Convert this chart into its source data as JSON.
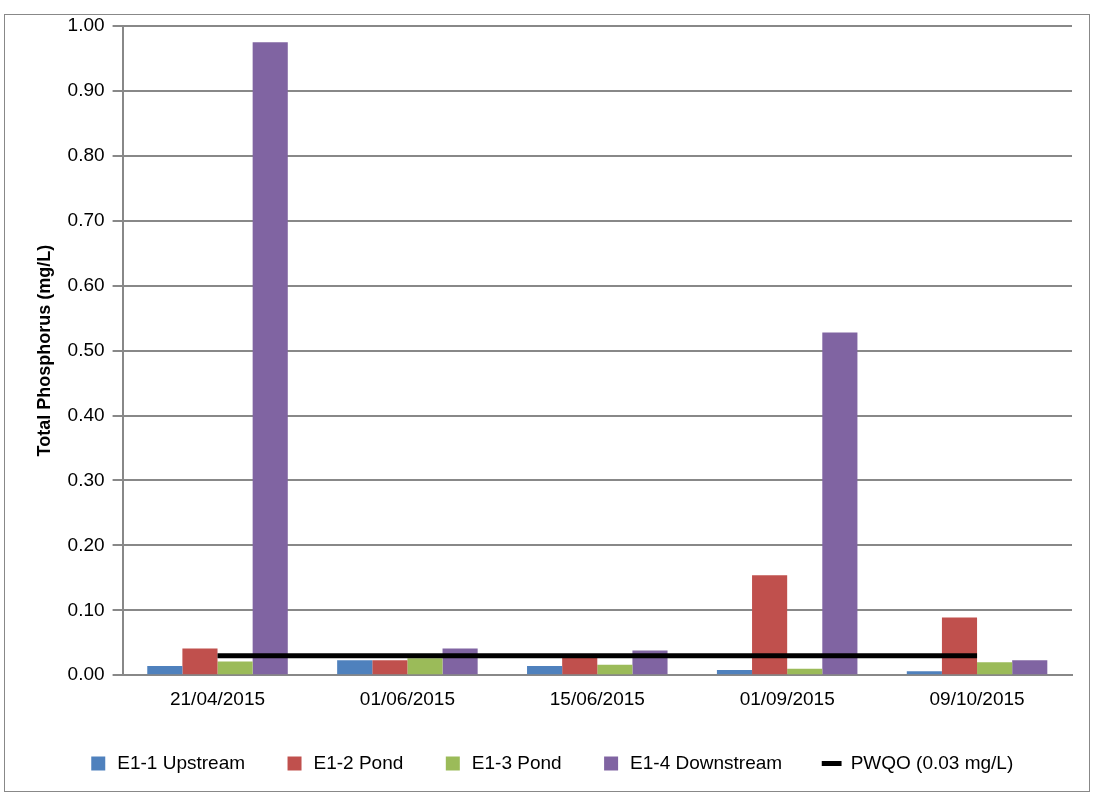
{
  "chart_data": {
    "type": "bar",
    "ylabel": "Total Phosphorus (mg/L)",
    "categories": [
      "21/04/2015",
      "01/06/2015",
      "15/06/2015",
      "01/09/2015",
      "09/10/2015"
    ],
    "series": [
      {
        "name": "E1-1 Upstream",
        "color": "#4f81bd",
        "values": [
          0.014,
          0.023,
          0.014,
          0.008,
          0.006
        ]
      },
      {
        "name": "E1-2 Pond",
        "color": "#c0504d",
        "values": [
          0.041,
          0.023,
          0.028,
          0.154,
          0.089
        ]
      },
      {
        "name": "E1-3 Pond",
        "color": "#9bbb59",
        "values": [
          0.021,
          0.026,
          0.016,
          0.01,
          0.02
        ]
      },
      {
        "name": "E1-4 Downstream",
        "color": "#8064a2",
        "values": [
          0.975,
          0.041,
          0.038,
          0.528,
          0.023
        ]
      },
      {
        "name": "PWQO (0.03 mg/L)",
        "type": "line",
        "color": "#000000",
        "marker": "none",
        "line_style": "solid",
        "values": [
          0.03,
          0.03,
          0.03,
          0.03,
          0.03
        ]
      }
    ],
    "ylim": [
      0,
      1
    ],
    "yticks": [
      {
        "value": 0,
        "label": "0.00"
      },
      {
        "value": 0.1,
        "label": "0.10"
      },
      {
        "value": 0.2,
        "label": "0.20"
      },
      {
        "value": 0.3,
        "label": "0.30"
      },
      {
        "value": 0.4,
        "label": "0.40"
      },
      {
        "value": 0.5,
        "label": "0.50"
      },
      {
        "value": 0.6,
        "label": "0.60"
      },
      {
        "value": 0.7,
        "label": "0.70"
      },
      {
        "value": 0.8,
        "label": "0.80"
      },
      {
        "value": 0.9,
        "label": "0.90"
      },
      {
        "value": 1,
        "label": "1.00"
      }
    ],
    "grid": "y",
    "legend": "bottom"
  }
}
